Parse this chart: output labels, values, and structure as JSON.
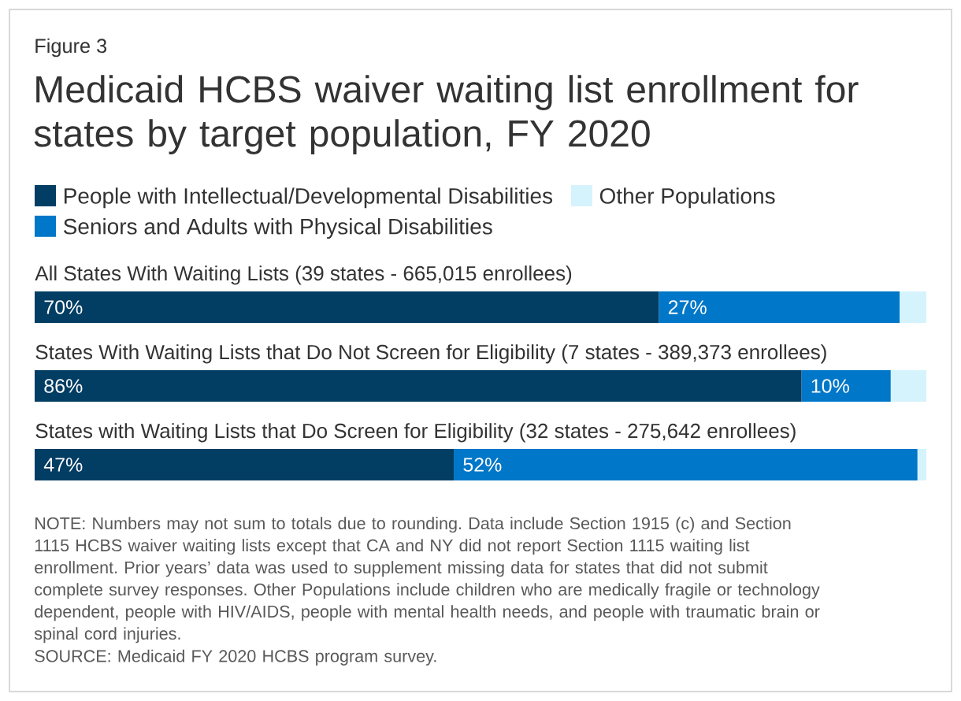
{
  "chart_data": {
    "type": "bar",
    "orientation": "horizontal",
    "stacked": true,
    "title": "Medicaid HCBS waiver waiting list enrollment for states by target population, FY 2020",
    "categories": [
      "All States With Waiting Lists (39 states - 665,015 enrollees)",
      "States With Waiting Lists that Do Not Screen for Eligibility (7 states - 389,373 enrollees)",
      "States with Waiting Lists that Do Screen for Eligibility (32 states - 275,642 enrollees)"
    ],
    "series": [
      {
        "name": "People with Intellectual/Developmental Disabilities",
        "color": "#023d63",
        "values": [
          70,
          86,
          47
        ],
        "value_labels": [
          "70%",
          "86%",
          "47%"
        ]
      },
      {
        "name": "Seniors and Adults with Physical Disabilities",
        "color": "#0077c8",
        "values": [
          27,
          10,
          52
        ],
        "value_labels": [
          "27%",
          "10%",
          "52%"
        ]
      },
      {
        "name": "Other Populations",
        "color": "#d5f3fd",
        "values": [
          3,
          4,
          1
        ]
      }
    ],
    "legend": "top",
    "tick_labels": "y",
    "annotations": [
      "Figure 3",
      "NOTE: Numbers may not sum to totals due to rounding. Data include Section 1915 (c) and Section 1115 HCBS waiver waiting lists except that CA and NY did not report Section 1115 waiting list enrollment. Prior years’ data was used to supplement missing data for states that did not submit complete survey responses. Other Populations include children who are medically fragile or technology dependent, people with HIV/AIDS, people with mental health needs, and people with traumatic brain or spinal cord injuries.",
      "SOURCE: Medicaid FY 2020 HCBS program survey."
    ]
  }
}
